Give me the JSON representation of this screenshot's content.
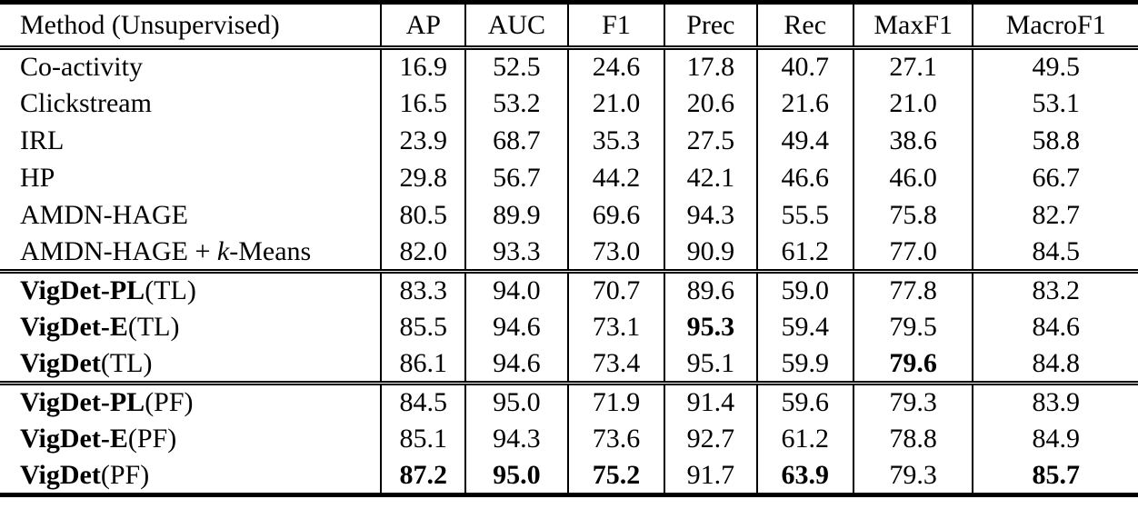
{
  "colors": {
    "background": "#ffffff",
    "text": "#000000",
    "rule": "#000000"
  },
  "table": {
    "header": [
      "Method (Unsupervised)",
      "AP",
      "AUC",
      "F1",
      "Prec",
      "Rec",
      "MaxF1",
      "MacroF1"
    ],
    "groups": [
      {
        "name": "baselines",
        "rows": [
          {
            "method": [
              {
                "text": "Co-activity",
                "style": "plain"
              }
            ],
            "values": [
              "16.9",
              "52.5",
              "24.6",
              "17.8",
              "40.7",
              "27.1",
              "49.5"
            ],
            "bold_values": []
          },
          {
            "method": [
              {
                "text": "Clickstream",
                "style": "plain"
              }
            ],
            "values": [
              "16.5",
              "53.2",
              "21.0",
              "20.6",
              "21.6",
              "21.0",
              "53.1"
            ],
            "bold_values": []
          },
          {
            "method": [
              {
                "text": "IRL",
                "style": "plain"
              }
            ],
            "values": [
              "23.9",
              "68.7",
              "35.3",
              "27.5",
              "49.4",
              "38.6",
              "58.8"
            ],
            "bold_values": []
          },
          {
            "method": [
              {
                "text": "HP",
                "style": "plain"
              }
            ],
            "values": [
              "29.8",
              "56.7",
              "44.2",
              "42.1",
              "46.6",
              "46.0",
              "66.7"
            ],
            "bold_values": []
          },
          {
            "method": [
              {
                "text": "AMDN-HAGE",
                "style": "plain"
              }
            ],
            "values": [
              "80.5",
              "89.9",
              "69.6",
              "94.3",
              "55.5",
              "75.8",
              "82.7"
            ],
            "bold_values": []
          },
          {
            "method": [
              {
                "text": "AMDN-HAGE + ",
                "style": "plain"
              },
              {
                "text": "k",
                "style": "italic"
              },
              {
                "text": "-Means",
                "style": "plain"
              }
            ],
            "values": [
              "82.0",
              "93.3",
              "73.0",
              "90.9",
              "61.2",
              "77.0",
              "84.5"
            ],
            "bold_values": []
          }
        ]
      },
      {
        "name": "vigdet-tl",
        "rows": [
          {
            "method": [
              {
                "text": "VigDet-PL",
                "style": "bold"
              },
              {
                "text": "(TL)",
                "style": "plain"
              }
            ],
            "values": [
              "83.3",
              "94.0",
              "70.7",
              "89.6",
              "59.0",
              "77.8",
              "83.2"
            ],
            "bold_values": []
          },
          {
            "method": [
              {
                "text": "VigDet-E",
                "style": "bold"
              },
              {
                "text": "(TL)",
                "style": "plain"
              }
            ],
            "values": [
              "85.5",
              "94.6",
              "73.1",
              "95.3",
              "59.4",
              "79.5",
              "84.6"
            ],
            "bold_values": [
              3
            ]
          },
          {
            "method": [
              {
                "text": "VigDet",
                "style": "bold"
              },
              {
                "text": "(TL)",
                "style": "plain"
              }
            ],
            "values": [
              "86.1",
              "94.6",
              "73.4",
              "95.1",
              "59.9",
              "79.6",
              "84.8"
            ],
            "bold_values": [
              5
            ]
          }
        ]
      },
      {
        "name": "vigdet-pf",
        "rows": [
          {
            "method": [
              {
                "text": "VigDet-PL",
                "style": "bold"
              },
              {
                "text": "(PF)",
                "style": "plain"
              }
            ],
            "values": [
              "84.5",
              "95.0",
              "71.9",
              "91.4",
              "59.6",
              "79.3",
              "83.9"
            ],
            "bold_values": []
          },
          {
            "method": [
              {
                "text": "VigDet-E",
                "style": "bold"
              },
              {
                "text": "(PF)",
                "style": "plain"
              }
            ],
            "values": [
              "85.1",
              "94.3",
              "73.6",
              "92.7",
              "61.2",
              "78.8",
              "84.9"
            ],
            "bold_values": []
          },
          {
            "method": [
              {
                "text": "VigDet",
                "style": "bold"
              },
              {
                "text": "(PF)",
                "style": "plain"
              }
            ],
            "values": [
              "87.2",
              "95.0",
              "75.2",
              "91.7",
              "63.9",
              "79.3",
              "85.7"
            ],
            "bold_values": [
              0,
              1,
              2,
              4,
              6
            ]
          }
        ]
      }
    ]
  }
}
